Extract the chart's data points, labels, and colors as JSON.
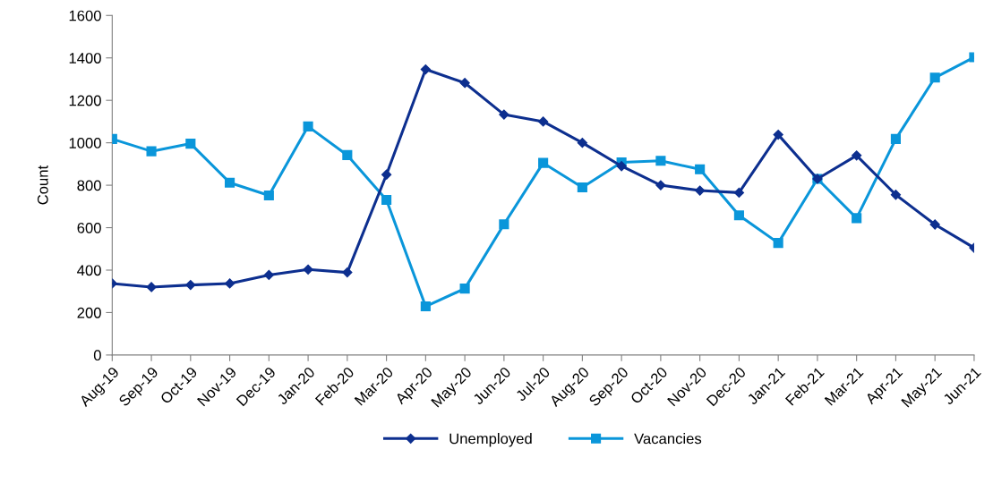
{
  "chart_data": {
    "type": "line",
    "ylabel": "Count",
    "categories": [
      "Aug-19",
      "Sep-19",
      "Oct-19",
      "Nov-19",
      "Dec-19",
      "Jan-20",
      "Feb-20",
      "Mar-20",
      "Apr-20",
      "May-20",
      "Jun-20",
      "Jul-20",
      "Aug-20",
      "Sep-20",
      "Oct-20",
      "Nov-20",
      "Dec-20",
      "Jan-21",
      "Feb-21",
      "Mar-21",
      "Apr-21",
      "May-21",
      "Jun-21"
    ],
    "series": [
      {
        "name": "Unemployed",
        "color": "#0d2f8f",
        "marker": "diamond",
        "values": [
          337,
          320,
          330,
          337,
          377,
          403,
          389,
          850,
          1346,
          1282,
          1133,
          1100,
          1000,
          890,
          800,
          775,
          765,
          1038,
          830,
          940,
          755,
          615,
          505
        ]
      },
      {
        "name": "Vacancies",
        "color": "#0a96da",
        "marker": "square",
        "values": [
          1018,
          960,
          996,
          812,
          752,
          1077,
          942,
          731,
          229,
          313,
          616,
          905,
          790,
          908,
          915,
          875,
          658,
          528,
          830,
          645,
          1018,
          1307,
          1403
        ]
      }
    ],
    "ylim": [
      0,
      1600
    ],
    "yticks": [
      0,
      200,
      400,
      600,
      800,
      1000,
      1200,
      1400,
      1600
    ],
    "grid": false,
    "legend": "bottom",
    "line_style": "solid"
  }
}
